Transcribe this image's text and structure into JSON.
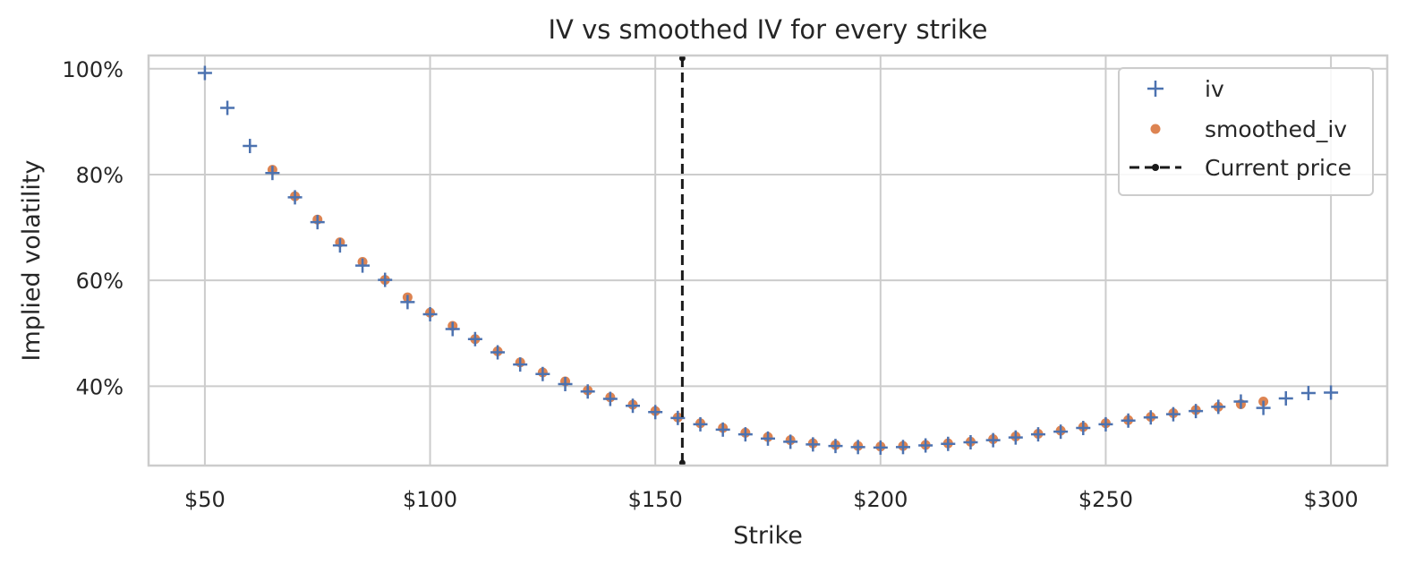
{
  "chart_data": {
    "type": "scatter",
    "title": "IV vs smoothed IV for every strike",
    "xlabel": "Strike",
    "ylabel": "Implied volatility",
    "xlim": [
      37.5,
      312.5
    ],
    "ylim": [
      25,
      102.5
    ],
    "x_ticks": [
      50,
      100,
      150,
      200,
      250,
      300
    ],
    "x_tick_labels": [
      "$50",
      "$100",
      "$150",
      "$200",
      "$250",
      "$300"
    ],
    "y_ticks": [
      40,
      60,
      80,
      100
    ],
    "y_tick_labels": [
      "40%",
      "60%",
      "80%",
      "100%"
    ],
    "grid": true,
    "legend_position": "top-right",
    "series": [
      {
        "name": "iv",
        "marker": "plus",
        "color": "#4c72b0",
        "x": [
          50,
          55,
          60,
          65,
          70,
          75,
          80,
          85,
          90,
          95,
          100,
          105,
          110,
          115,
          120,
          125,
          130,
          135,
          140,
          145,
          150,
          155,
          160,
          165,
          170,
          175,
          180,
          185,
          190,
          195,
          200,
          205,
          210,
          215,
          220,
          225,
          230,
          235,
          240,
          245,
          250,
          255,
          260,
          265,
          270,
          275,
          280,
          285,
          290,
          295,
          300
        ],
        "y": [
          99.2,
          92.6,
          85.4,
          80.3,
          75.7,
          71.0,
          66.6,
          62.8,
          60.1,
          55.9,
          53.6,
          50.8,
          48.9,
          46.4,
          44.1,
          42.3,
          40.4,
          39.0,
          37.6,
          36.3,
          35.1,
          34.0,
          32.8,
          31.8,
          30.9,
          30.1,
          29.5,
          29.0,
          28.7,
          28.5,
          28.4,
          28.5,
          28.8,
          29.1,
          29.4,
          29.8,
          30.3,
          30.9,
          31.4,
          32.1,
          32.8,
          33.5,
          34.1,
          34.7,
          35.3,
          36.1,
          37.1,
          35.9,
          37.7,
          38.7,
          38.8
        ]
      },
      {
        "name": "smoothed_iv",
        "marker": "dot",
        "color": "#dd8452",
        "x": [
          65,
          70,
          75,
          80,
          85,
          90,
          95,
          100,
          105,
          110,
          115,
          120,
          125,
          130,
          135,
          140,
          145,
          150,
          155,
          160,
          165,
          170,
          175,
          180,
          185,
          190,
          195,
          200,
          205,
          210,
          215,
          220,
          225,
          230,
          235,
          240,
          245,
          250,
          255,
          260,
          265,
          270,
          275,
          280,
          285
        ],
        "y": [
          80.9,
          75.9,
          71.5,
          67.2,
          63.5,
          60.1,
          56.8,
          53.9,
          51.4,
          48.9,
          46.6,
          44.5,
          42.6,
          40.9,
          39.2,
          37.9,
          36.5,
          35.3,
          34.1,
          33.0,
          32.1,
          31.2,
          30.4,
          29.8,
          29.2,
          28.9,
          28.7,
          28.6,
          28.7,
          28.9,
          29.2,
          29.5,
          30.0,
          30.5,
          31.0,
          31.6,
          32.3,
          33.0,
          33.6,
          34.2,
          34.9,
          35.5,
          36.1,
          36.6,
          37.1
        ]
      },
      {
        "name": "Current price",
        "marker": "line",
        "color": "#1a1a1a",
        "x_value": 156
      }
    ]
  }
}
